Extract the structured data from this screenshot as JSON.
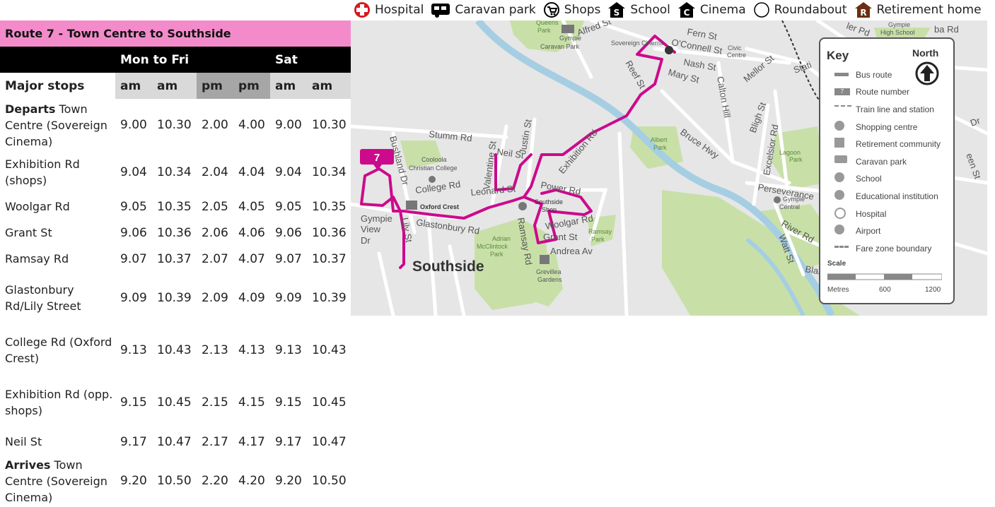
{
  "legend": [
    {
      "icon": "hospital-icon",
      "label": "Hospital"
    },
    {
      "icon": "caravan-park-icon",
      "label": "Caravan park"
    },
    {
      "icon": "shops-icon",
      "label": "Shops"
    },
    {
      "icon": "school-icon",
      "label": "School"
    },
    {
      "icon": "cinema-icon",
      "label": "Cinema"
    },
    {
      "icon": "roundabout-icon",
      "label": "Roundabout"
    },
    {
      "icon": "retirement-home-icon",
      "label": "Retirement home"
    }
  ],
  "timetable": {
    "title": "Route 7 - Town Centre to Southside",
    "days": {
      "weekday": "Mon to Fri",
      "saturday": "Sat"
    },
    "stops_header": "Major stops",
    "periods": [
      "am",
      "am",
      "pm",
      "pm",
      "am",
      "am"
    ],
    "rows": [
      {
        "bold": "Departs",
        "stop": " Town Centre (Sovereign Cinema)",
        "times": [
          "9.00",
          "10.30",
          "2.00",
          "4.00",
          "9.00",
          "10.30"
        ]
      },
      {
        "bold": "",
        "stop": "Exhibition Rd (shops)",
        "times": [
          "9.04",
          "10.34",
          "2.04",
          "4.04",
          "9.04",
          "10.34"
        ]
      },
      {
        "bold": "",
        "stop": "Woolgar Rd",
        "times": [
          "9.05",
          "10.35",
          "2.05",
          "4.05",
          "9.05",
          "10.35"
        ]
      },
      {
        "bold": "",
        "stop": "Grant St",
        "times": [
          "9.06",
          "10.36",
          "2.06",
          "4.06",
          "9.06",
          "10.36"
        ]
      },
      {
        "bold": "",
        "stop": "Ramsay Rd",
        "times": [
          "9.07",
          "10.37",
          "2.07",
          "4.07",
          "9.07",
          "10.37"
        ]
      },
      {
        "bold": "",
        "stop": "Glastonbury Rd/Lily Street",
        "times": [
          "9.09",
          "10.39",
          "2.09",
          "4.09",
          "9.09",
          "10.39"
        ]
      },
      {
        "bold": "",
        "stop": "College Rd (Oxford Crest)",
        "times": [
          "9.13",
          "10.43",
          "2.13",
          "4.13",
          "9.13",
          "10.43"
        ]
      },
      {
        "bold": "",
        "stop": "Exhibition Rd (opp. shops)",
        "times": [
          "9.15",
          "10.45",
          "2.15",
          "4.15",
          "9.15",
          "10.45"
        ]
      },
      {
        "bold": "",
        "stop": "Neil St",
        "times": [
          "9.17",
          "10.47",
          "2.17",
          "4.17",
          "9.17",
          "10.47"
        ]
      },
      {
        "bold": "Arrives",
        "stop": " Town Centre (Sovereign Cinema)",
        "times": [
          "9.20",
          "10.50",
          "2.20",
          "4.20",
          "9.20",
          "10.50"
        ]
      }
    ]
  },
  "map": {
    "route_number": "7",
    "area_label": "Southside",
    "labels": {
      "stumm": "Stumm Rd",
      "bushland": "Bushland Dr",
      "college": "College Rd",
      "coolooia": "Cooloola",
      "christian": "Christian College",
      "oxford": "Oxford Crest",
      "gympie": "Gympie",
      "view": "View",
      "dr": "Dr",
      "lily": "Lily St",
      "glastonbury": "Glastonbury Rd",
      "valentine": "Valentine St",
      "neil": "Neil St",
      "justin": "Justin St",
      "leonard": "Leonard St",
      "power": "Power Rd",
      "exhibition": "Exhibition Rd",
      "southside_shop": "Southside",
      "shop": "Shop",
      "woolgar": "Woolgar Rd",
      "grant": "Grant St",
      "andrea": "Andrea Av",
      "ramsay_rd": "Ramsay Rd",
      "adrian": "Adrian",
      "mcclintock": "McClintock",
      "park": "Park",
      "ramsay_park": "Ramsay",
      "ramsay_park2": "Park",
      "grevillea": "Grevillea",
      "gardens": "Gardens",
      "queens": "Queens",
      "queens_park": "Park",
      "gympie_caravan": "Gympie",
      "caravan_park": "Caravan Park",
      "alfred": "Alfred St",
      "sovereign": "Sovereign Cinema",
      "fern": "Fern St",
      "oconnell": "O'Connell St",
      "nash": "Nash St",
      "mary": "Mary St",
      "reef": "Reef St",
      "civic": "Civic",
      "centre": "Centre",
      "calton": "Calton Hill",
      "mellor": "Mellor St",
      "bligh": "Bligh St",
      "excelsior": "Excelsior Rd",
      "albert": "Albert",
      "albert_park": "Park",
      "bruce": "Bruce Hwy",
      "lagoon": "Lagoon",
      "lagoon_park": "Park",
      "perseverance": "Perseverance",
      "gympie_central": "Gympie",
      "central": "Central",
      "river": "River Rd",
      "watt": "Watt St",
      "stat": "Stati",
      "gympie_high": "Gympie",
      "high_school": "High School",
      "ba": "ba Rd",
      "de": "Dr",
      "ler": "ler Pd",
      "een": "een St",
      "blak": "Blake"
    },
    "key": {
      "title": "Key",
      "north": "North",
      "items": [
        "Bus route",
        "Route number",
        "Train line and station",
        "Shopping centre",
        "Retirement community",
        "Caravan park",
        "School",
        "Educational institution",
        "Hospital",
        "Airport",
        "Fare zone boundary"
      ],
      "scale": "Scale",
      "metres": "Metres",
      "m600": "600",
      "m1200": "1200"
    },
    "colors": {
      "route": "#cc0a8c",
      "road": "#ffffff",
      "park": "#c8e0a8",
      "river": "#a6cee3",
      "land": "#e6e6e6"
    }
  }
}
